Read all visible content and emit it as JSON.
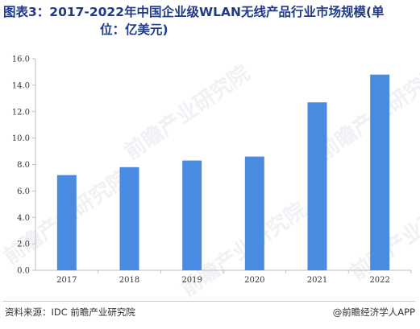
{
  "title": {
    "line1": "图表3：2017-2022年中国企业级WLAN无线产品行业市场规模(单",
    "line2": "位：亿美元)"
  },
  "footer": {
    "source": "资料来源：IDC 前瞻产业研究院",
    "brand": "@前瞻经济学人APP"
  },
  "watermark": "前瞻产业研究院",
  "colors": {
    "bar": "#4a8be2",
    "axis": "#bfbfbf",
    "title": "#1f3a8a"
  },
  "chart_data": {
    "type": "bar",
    "categories": [
      "2017",
      "2018",
      "2019",
      "2020",
      "2021",
      "2022"
    ],
    "values": [
      7.2,
      7.8,
      8.3,
      8.6,
      12.7,
      14.8
    ],
    "ylim": [
      0,
      16
    ],
    "yticks": [
      "0.0",
      "2.0",
      "4.0",
      "6.0",
      "8.0",
      "10.0",
      "12.0",
      "14.0",
      "16.0"
    ],
    "grid": false,
    "title": "",
    "xlabel": "",
    "ylabel": ""
  }
}
